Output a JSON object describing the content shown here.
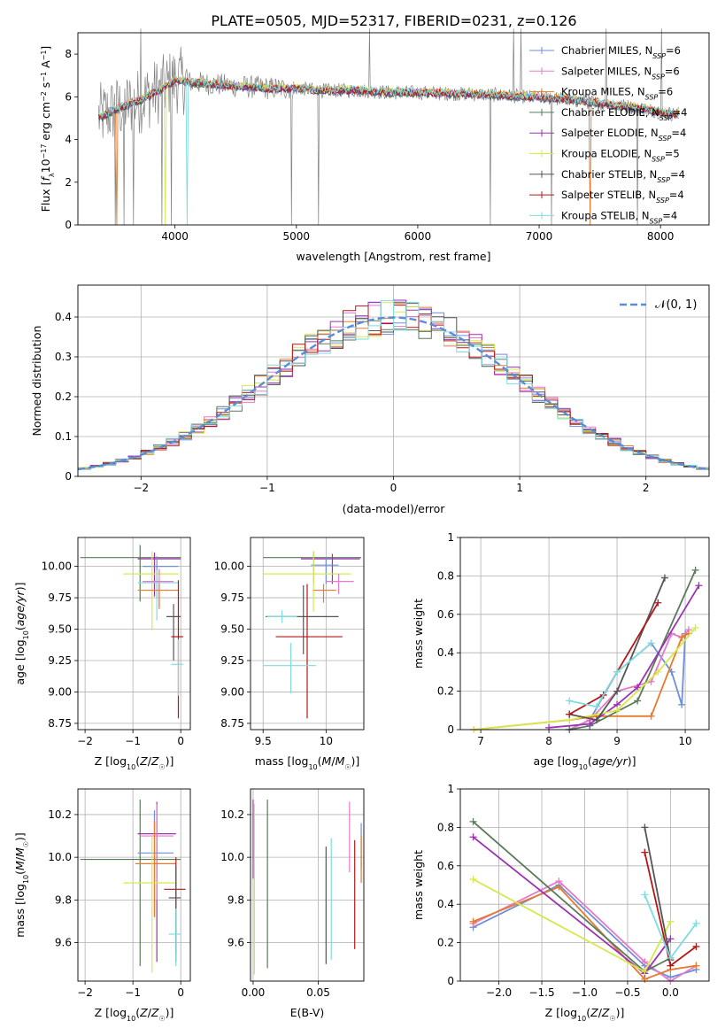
{
  "figure": {
    "title": "PLATE=0505, MJD=52317, FIBERID=0231, z=0.126"
  },
  "colors": {
    "chabrier_miles": "#6f8fd8",
    "salpeter_miles": "#e879c8",
    "kroupa_miles": "#e67a2e",
    "chabrier_elodie": "#5a7a5a",
    "salpeter_elodie": "#9b32b4",
    "kroupa_elodie": "#d7e84b",
    "chabrier_stelib": "#555555",
    "salpeter_stelib": "#b31818",
    "kroupa_stelib": "#7edbe0",
    "data": "#808080",
    "normal": "#5b8dd6",
    "grid": "#b0b0b0"
  },
  "chart_data": [
    {
      "id": "spectrum",
      "type": "line",
      "xlabel": "wavelength [Angstrom, rest frame]",
      "ylabel": "Flux [fλ10⁻¹⁷ erg cm⁻² s⁻¹ A⁻¹]",
      "xlim": [
        3200,
        8400
      ],
      "ylim": [
        0,
        9
      ],
      "xticks": [
        4000,
        5000,
        6000,
        7000,
        8000
      ],
      "yticks": [
        0,
        2,
        4,
        6,
        8
      ],
      "grid": false,
      "legend_position": "top-right",
      "legend": [
        {
          "label": "Chabrier MILES, N_SSP=6",
          "color_key": "chabrier_miles"
        },
        {
          "label": "Salpeter MILES, N_SSP=6",
          "color_key": "salpeter_miles"
        },
        {
          "label": "Kroupa MILES, N_SSP=6",
          "color_key": "kroupa_miles"
        },
        {
          "label": "Chabrier ELODIE, N_SSP=4",
          "color_key": "chabrier_elodie"
        },
        {
          "label": "Salpeter ELODIE, N_SSP=4",
          "color_key": "salpeter_elodie"
        },
        {
          "label": "Kroupa ELODIE, N_SSP=5",
          "color_key": "kroupa_elodie"
        },
        {
          "label": "Chabrier STELIB, N_SSP=4",
          "color_key": "chabrier_stelib"
        },
        {
          "label": "Salpeter STELIB, N_SSP=4",
          "color_key": "salpeter_stelib"
        },
        {
          "label": "Kroupa STELIB, N_SSP=4",
          "color_key": "kroupa_stelib"
        }
      ],
      "model_continuum": {
        "x": [
          3400,
          3500,
          3600,
          3700,
          3800,
          3900,
          4000,
          4100,
          4300,
          4500,
          4800,
          5000,
          5200,
          5500,
          5800,
          6000,
          6300,
          6600,
          6900,
          7200,
          7500,
          7800,
          8100
        ],
        "y": [
          5.1,
          5.4,
          5.6,
          5.8,
          6.1,
          6.4,
          6.8,
          6.7,
          6.6,
          6.5,
          6.4,
          6.4,
          6.3,
          6.3,
          6.2,
          6.2,
          6.15,
          6.1,
          6.0,
          5.9,
          5.7,
          5.5,
          5.2
        ]
      },
      "model_drops": [
        3520,
        3920,
        4100,
        7420
      ],
      "data_spikes": [
        3510,
        3580,
        3660,
        3720,
        3890,
        3970,
        4960,
        5180,
        5600,
        6600,
        6790,
        6850,
        7100,
        7550,
        7810,
        8010
      ]
    },
    {
      "id": "residuals",
      "type": "area",
      "xlabel": "(data-model)/error",
      "ylabel": "Normed distribution",
      "xlim": [
        -2.5,
        2.5
      ],
      "ylim": [
        0,
        0.48
      ],
      "xticks": [
        -2,
        -1,
        0,
        1,
        2
      ],
      "yticks": [
        0.0,
        0.1,
        0.2,
        0.3,
        0.4
      ],
      "grid": true,
      "legend_position": "top-right",
      "legend_label": "𝒩(0, 1)",
      "bin_width": 0.1
    },
    {
      "id": "age_vs_Z",
      "type": "scatter",
      "xlabel": "Z [log₁₀(Z/Z☉)]",
      "ylabel": "age  [log₁₀(age/yr)]",
      "xlim": [
        -2.15,
        0.2
      ],
      "ylim": [
        8.7,
        10.23
      ],
      "xticks": [
        -2,
        -1,
        0
      ],
      "yticks": [
        8.75,
        9.0,
        9.25,
        9.5,
        9.75,
        10.0
      ],
      "ytick_labels": [
        "8.75",
        "9.00",
        "9.25",
        "9.50",
        "9.75",
        "10.00"
      ],
      "grid": true,
      "points": [
        {
          "c": "chabrier_elodie",
          "x": -0.85,
          "y": 10.07,
          "xerr": [
            1.25,
            0.85
          ],
          "yerr": [
            0.35,
            0.1
          ]
        },
        {
          "c": "salpeter_elodie",
          "x": -0.55,
          "y": 10.06,
          "xerr": [
            0.35,
            0.55
          ],
          "yerr": [
            0.3,
            0.05
          ]
        },
        {
          "c": "chabrier_miles",
          "x": -0.5,
          "y": 10.0,
          "xerr": [
            0.3,
            0.45
          ],
          "yerr": [
            0.25,
            0.08
          ]
        },
        {
          "c": "kroupa_elodie",
          "x": -0.6,
          "y": 9.94,
          "xerr": [
            0.6,
            0.55
          ],
          "yerr": [
            0.45,
            0.18
          ]
        },
        {
          "c": "kroupa_stelib",
          "x": -0.5,
          "y": 9.87,
          "xerr": [
            0.4,
            0.45
          ],
          "yerr": [
            0.3,
            0.1
          ]
        },
        {
          "c": "salpeter_miles",
          "x": -0.45,
          "y": 9.88,
          "xerr": [
            0.35,
            0.3
          ],
          "yerr": [
            0.2,
            0.1
          ]
        },
        {
          "c": "kroupa_miles",
          "x": -0.45,
          "y": 9.81,
          "xerr": [
            0.45,
            0.4
          ],
          "yerr": [
            0.15,
            0.05
          ]
        },
        {
          "c": "chabrier_stelib",
          "x": -0.15,
          "y": 9.6,
          "xerr": [
            0.15,
            0.15
          ],
          "yerr": [
            0.35,
            0.1
          ]
        },
        {
          "c": "salpeter_stelib",
          "x": -0.05,
          "y": 9.44,
          "xerr": [
            0.15,
            0.1
          ],
          "yerr": [
            0.65,
            0.45
          ]
        },
        {
          "c": "kroupa_stelib",
          "x": -0.05,
          "y": 9.22,
          "xerr": [
            0.15,
            0.1
          ],
          "yerr": [
            0.25,
            0.2
          ]
        }
      ]
    },
    {
      "id": "age_vs_mass",
      "type": "scatter",
      "xlabel": "mass [log₁₀(M/M☉)]",
      "ylabel": "",
      "xlim": [
        9.4,
        10.3
      ],
      "ylim": [
        8.7,
        10.23
      ],
      "xticks": [
        9.5,
        10.0
      ],
      "yticks": [
        8.75,
        9.0,
        9.25,
        9.5,
        9.75,
        10.0
      ],
      "ytick_labels": [
        "8.75",
        "9.00",
        "9.25",
        "9.50",
        "9.75",
        "10.00"
      ],
      "grid": true,
      "points": [
        {
          "c": "chabrier_elodie",
          "x": 9.9,
          "y": 10.07,
          "xerr": [
            0.4,
            0.38
          ],
          "yerr": [
            0.2,
            0.05
          ]
        },
        {
          "c": "salpeter_elodie",
          "x": 10.05,
          "y": 10.06,
          "xerr": [
            0.25,
            0.22
          ],
          "yerr": [
            0.2,
            0.04
          ]
        },
        {
          "c": "chabrier_miles",
          "x": 10.0,
          "y": 10.01,
          "xerr": [
            0.12,
            0.1
          ],
          "yerr": [
            0.15,
            0.06
          ]
        },
        {
          "c": "kroupa_elodie",
          "x": 9.9,
          "y": 9.94,
          "xerr": [
            0.4,
            0.3
          ],
          "yerr": [
            0.3,
            0.18
          ]
        },
        {
          "c": "salpeter_miles",
          "x": 10.1,
          "y": 9.88,
          "xerr": [
            0.1,
            0.12
          ],
          "yerr": [
            0.1,
            0.06
          ]
        },
        {
          "c": "kroupa_miles",
          "x": 9.98,
          "y": 9.81,
          "xerr": [
            0.08,
            0.1
          ],
          "yerr": [
            0.1,
            0.05
          ]
        },
        {
          "c": "chabrier_stelib",
          "x": 9.82,
          "y": 9.6,
          "xerr": [
            0.3,
            0.28
          ],
          "yerr": [
            0.3,
            0.25
          ]
        },
        {
          "c": "kroupa_stelib",
          "x": 9.65,
          "y": 9.6,
          "xerr": [
            0.12,
            0.12
          ],
          "yerr": [
            0.05,
            0.05
          ]
        },
        {
          "c": "salpeter_stelib",
          "x": 9.85,
          "y": 9.44,
          "xerr": [
            0.25,
            0.28
          ],
          "yerr": [
            0.65,
            0.42
          ]
        },
        {
          "c": "kroupa_stelib",
          "x": 9.72,
          "y": 9.21,
          "xerr": [
            0.22,
            0.2
          ],
          "yerr": [
            0.22,
            0.18
          ]
        }
      ]
    },
    {
      "id": "massweight_vs_age",
      "type": "line",
      "xlabel": "age  [log₁₀(age/yr)]",
      "ylabel": "mass weight",
      "xlim": [
        6.7,
        10.35
      ],
      "ylim": [
        0,
        1.0
      ],
      "xticks": [
        7,
        8,
        9,
        10
      ],
      "yticks": [
        0.0,
        0.2,
        0.4,
        0.6,
        0.8,
        1.0
      ],
      "grid": true,
      "series": [
        {
          "c": "chabrier_miles",
          "x": [
            8.3,
            8.6,
            9.0,
            9.5,
            9.8,
            9.95,
            10.0
          ],
          "y": [
            0.0,
            0.05,
            0.3,
            0.45,
            0.3,
            0.13,
            0.5
          ]
        },
        {
          "c": "salpeter_miles",
          "x": [
            8.3,
            8.6,
            9.0,
            9.5,
            9.8,
            9.95,
            10.05
          ],
          "y": [
            0.0,
            0.05,
            0.2,
            0.25,
            0.5,
            0.48,
            0.52
          ]
        },
        {
          "c": "kroupa_miles",
          "x": [
            6.9,
            8.3,
            8.7,
            9.5,
            9.95,
            10.05
          ],
          "y": [
            0.0,
            0.05,
            0.07,
            0.07,
            0.48,
            0.5
          ]
        },
        {
          "c": "chabrier_elodie",
          "x": [
            8.3,
            8.6,
            9.3,
            10.15
          ],
          "y": [
            0.0,
            0.02,
            0.15,
            0.83
          ]
        },
        {
          "c": "salpeter_elodie",
          "x": [
            8.0,
            8.6,
            9.0,
            9.3,
            10.2
          ],
          "y": [
            0.01,
            0.03,
            0.13,
            0.22,
            0.75
          ]
        },
        {
          "c": "kroupa_elodie",
          "x": [
            6.9,
            8.3,
            9.0,
            9.6,
            10.15
          ],
          "y": [
            0.0,
            0.05,
            0.1,
            0.3,
            0.53
          ]
        },
        {
          "c": "chabrier_stelib",
          "x": [
            8.3,
            8.7,
            9.0,
            9.7
          ],
          "y": [
            0.08,
            0.05,
            0.2,
            0.79
          ]
        },
        {
          "c": "salpeter_stelib",
          "x": [
            8.3,
            8.8,
            9.6
          ],
          "y": [
            0.08,
            0.18,
            0.66
          ]
        },
        {
          "c": "kroupa_stelib",
          "x": [
            8.3,
            8.7,
            9.0,
            9.5
          ],
          "y": [
            0.15,
            0.12,
            0.3,
            0.45
          ]
        }
      ]
    },
    {
      "id": "mass_vs_Z",
      "type": "scatter",
      "xlabel": "Z [log₁₀(Z/Z☉)]",
      "ylabel": "mass [log₁₀(M/M☉)]",
      "xlim": [
        -2.15,
        0.2
      ],
      "ylim": [
        9.42,
        10.32
      ],
      "xticks": [
        -2,
        -1,
        0
      ],
      "yticks": [
        9.6,
        9.8,
        10.0,
        10.2
      ],
      "ytick_labels": [
        "9.6",
        "9.8",
        "10.0",
        "10.2"
      ],
      "grid": true,
      "points": [
        {
          "c": "chabrier_elodie",
          "x": -0.85,
          "y": 9.99,
          "xerr": [
            1.25,
            0.85
          ],
          "yerr": [
            0.5,
            0.28
          ]
        },
        {
          "c": "salpeter_elodie",
          "x": -0.5,
          "y": 10.11,
          "xerr": [
            0.4,
            0.4
          ],
          "yerr": [
            0.6,
            0.15
          ]
        },
        {
          "c": "salpeter_miles",
          "x": -0.5,
          "y": 10.1,
          "xerr": [
            0.35,
            0.35
          ],
          "yerr": [
            0.3,
            0.15
          ]
        },
        {
          "c": "chabrier_miles",
          "x": -0.55,
          "y": 10.02,
          "xerr": [
            0.35,
            0.4
          ],
          "yerr": [
            0.3,
            0.2
          ]
        },
        {
          "c": "kroupa_miles",
          "x": -0.55,
          "y": 9.97,
          "xerr": [
            0.4,
            0.45
          ],
          "yerr": [
            0.25,
            0.2
          ]
        },
        {
          "c": "kroupa_elodie",
          "x": -0.6,
          "y": 9.88,
          "xerr": [
            0.6,
            0.5
          ],
          "yerr": [
            0.42,
            0.22
          ]
        },
        {
          "c": "salpeter_stelib",
          "x": -0.1,
          "y": 9.85,
          "xerr": [
            0.25,
            0.2
          ],
          "yerr": [
            0.3,
            0.15
          ]
        },
        {
          "c": "chabrier_stelib",
          "x": -0.1,
          "y": 9.81,
          "xerr": [
            0.15,
            0.1
          ],
          "yerr": [
            0.3,
            0.15
          ]
        },
        {
          "c": "kroupa_stelib",
          "x": -0.1,
          "y": 9.64,
          "xerr": [
            0.15,
            0.1
          ],
          "yerr": [
            0.15,
            0.12
          ]
        }
      ]
    },
    {
      "id": "mass_vs_ebv",
      "type": "scatter",
      "xlabel": "E(B-V)",
      "ylabel": "",
      "xlim": [
        -0.002,
        0.085
      ],
      "ylim": [
        9.42,
        10.32
      ],
      "xticks": [
        0.0,
        0.05
      ],
      "xtick_labels": [
        "0.00",
        "0.05"
      ],
      "yticks": [
        9.6,
        9.8,
        10.0,
        10.2
      ],
      "ytick_labels": [
        "9.6",
        "9.8",
        "10.0",
        "10.2"
      ],
      "grid": true,
      "vbars": [
        {
          "c": "salpeter_elodie",
          "x": 0.0,
          "y0": 9.9,
          "y1": 10.27
        },
        {
          "c": "kroupa_elodie",
          "x": 0.001,
          "y0": 9.45,
          "y1": 10.25
        },
        {
          "c": "chabrier_elodie",
          "x": 0.011,
          "y0": 9.48,
          "y1": 10.27
        },
        {
          "c": "chabrier_stelib",
          "x": 0.056,
          "y0": 9.5,
          "y1": 10.05
        },
        {
          "c": "kroupa_stelib",
          "x": 0.06,
          "y0": 9.52,
          "y1": 10.09
        },
        {
          "c": "salpeter_miles",
          "x": 0.074,
          "y0": 9.93,
          "y1": 10.26
        },
        {
          "c": "salpeter_stelib",
          "x": 0.078,
          "y0": 9.57,
          "y1": 10.08
        },
        {
          "c": "chabrier_miles",
          "x": 0.083,
          "y0": 9.95,
          "y1": 10.16
        },
        {
          "c": "kroupa_miles",
          "x": 0.083,
          "y0": 9.88,
          "y1": 10.1
        }
      ]
    },
    {
      "id": "massweight_vs_Z",
      "type": "line",
      "xlabel": "Z [log₁₀(Z/Z☉)]",
      "ylabel": "mass weight",
      "xlim": [
        -2.45,
        0.45
      ],
      "ylim": [
        0,
        1.0
      ],
      "xticks": [
        -2.0,
        -1.5,
        -1.0,
        -0.5,
        0.0
      ],
      "xtick_labels": [
        "−2.0",
        "−1.5",
        "−1.0",
        "−0.5",
        "0.0"
      ],
      "yticks": [
        0.0,
        0.2,
        0.4,
        0.6,
        0.8,
        1.0
      ],
      "grid": true,
      "series": [
        {
          "c": "chabrier_miles",
          "x": [
            -2.3,
            -1.3,
            -0.3,
            0.0,
            0.3
          ],
          "y": [
            0.28,
            0.5,
            0.08,
            0.02,
            0.06
          ]
        },
        {
          "c": "salpeter_miles",
          "x": [
            -2.3,
            -1.3,
            -0.3,
            0.0,
            0.3
          ],
          "y": [
            0.3,
            0.52,
            0.1,
            0.0,
            0.08
          ]
        },
        {
          "c": "kroupa_miles",
          "x": [
            -2.3,
            -1.3,
            -0.3,
            0.0,
            0.3
          ],
          "y": [
            0.31,
            0.49,
            0.01,
            0.06,
            0.08
          ]
        },
        {
          "c": "chabrier_elodie",
          "x": [
            -2.3,
            -0.3,
            0.0
          ],
          "y": [
            0.83,
            0.05,
            0.12
          ]
        },
        {
          "c": "salpeter_elodie",
          "x": [
            -2.3,
            -0.3,
            0.0
          ],
          "y": [
            0.75,
            0.04,
            0.22
          ]
        },
        {
          "c": "kroupa_elodie",
          "x": [
            -2.3,
            -0.3,
            0.0
          ],
          "y": [
            0.53,
            0.05,
            0.31
          ]
        },
        {
          "c": "chabrier_stelib",
          "x": [
            -0.3,
            0.0
          ],
          "y": [
            0.8,
            0.11
          ]
        },
        {
          "c": "salpeter_stelib",
          "x": [
            -0.3,
            0.0,
            0.3
          ],
          "y": [
            0.67,
            0.08,
            0.18
          ]
        },
        {
          "c": "kroupa_stelib",
          "x": [
            -0.3,
            0.0,
            0.3
          ],
          "y": [
            0.45,
            0.12,
            0.3
          ]
        }
      ]
    }
  ]
}
